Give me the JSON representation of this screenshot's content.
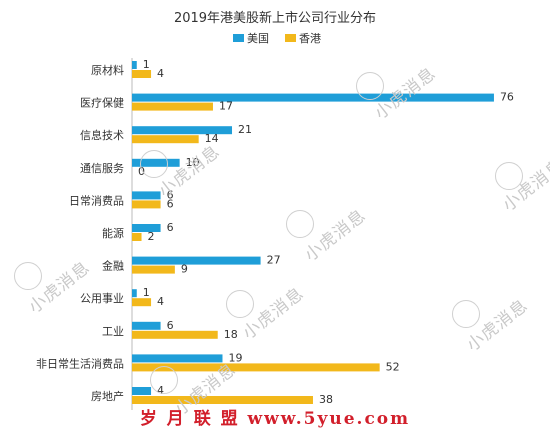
{
  "chart_data": {
    "type": "bar",
    "orientation": "horizontal",
    "title": "2019年港美股新上市公司行业分布",
    "legend_position": "top",
    "categories": [
      "原材料",
      "医疗保健",
      "信息技术",
      "通信服务",
      "日常消费品",
      "能源",
      "金融",
      "公用事业",
      "工业",
      "非日常生活消费品",
      "房地产"
    ],
    "series": [
      {
        "name": "美国",
        "color": "#1f9ed8",
        "values": [
          1,
          76,
          21,
          10,
          6,
          6,
          27,
          1,
          6,
          19,
          4
        ]
      },
      {
        "name": "香港",
        "color": "#f2b81b",
        "values": [
          4,
          17,
          14,
          0,
          6,
          2,
          9,
          4,
          18,
          52,
          38
        ]
      }
    ],
    "xlim": [
      0,
      80
    ],
    "grid": false
  },
  "watermark": {
    "text": "小虎消息"
  },
  "footer": {
    "brand": "岁 月 联 盟  www.5yue.com"
  }
}
